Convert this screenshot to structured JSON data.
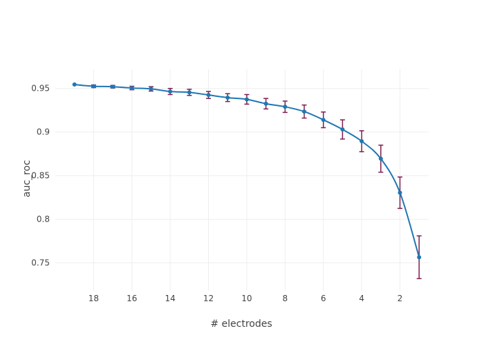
{
  "colors": {
    "line": "#1f77b4",
    "error_bar": "#7f1d4f",
    "grid": "#eeeeee",
    "text": "#444444"
  },
  "chart_data": {
    "type": "line",
    "title": "",
    "xlabel": "# electrodes",
    "ylabel": "auc_roc",
    "x_reversed": true,
    "xlim": [
      20,
      0.5
    ],
    "ylim": [
      0.718,
      0.972
    ],
    "x_ticks": [
      18,
      16,
      14,
      12,
      10,
      8,
      6,
      4,
      2
    ],
    "y_ticks": [
      0.75,
      0.8,
      0.85,
      0.9,
      0.95
    ],
    "y_tick_labels": [
      "0.75",
      "0.8",
      "0.85",
      "0.9",
      "0.95"
    ],
    "grid": true,
    "series": [
      {
        "x": [
          19,
          18,
          17,
          16,
          15,
          14,
          13,
          12,
          11,
          10,
          9,
          8,
          7,
          6,
          5,
          4,
          3,
          2,
          1
        ],
        "values": [
          0.9545,
          0.9525,
          0.952,
          0.9505,
          0.9495,
          0.9465,
          0.9455,
          0.9425,
          0.9395,
          0.9375,
          0.9325,
          0.929,
          0.9235,
          0.914,
          0.903,
          0.8895,
          0.8695,
          0.8305,
          0.7565
        ],
        "error": [
          0.0,
          0.0015,
          0.0015,
          0.002,
          0.0025,
          0.0035,
          0.0035,
          0.004,
          0.0045,
          0.0055,
          0.006,
          0.0065,
          0.0075,
          0.009,
          0.011,
          0.012,
          0.0155,
          0.018,
          0.0245
        ]
      }
    ]
  }
}
